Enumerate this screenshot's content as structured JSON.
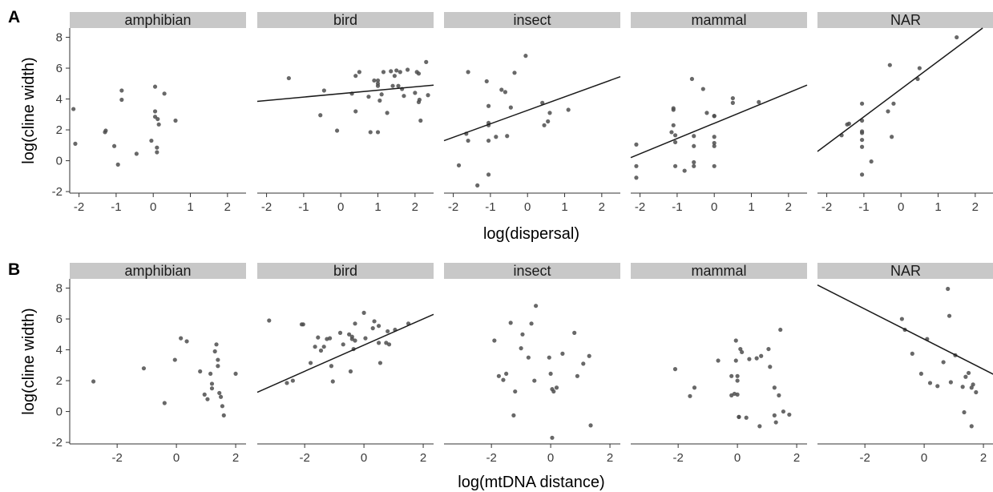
{
  "colors": {
    "strip": "#c8c8c8",
    "point": "#4d4d4d",
    "line": "#1a1a1a",
    "axis": "#333333"
  },
  "chart_data": [
    {
      "type": "scatter",
      "tag": "A",
      "xlabel": "log(dispersal)",
      "ylabel": "log(cline width)",
      "xlim": [
        -2.25,
        2.5
      ],
      "ylim": [
        -2.1,
        8.6
      ],
      "xticks": [
        -2,
        -1,
        0,
        1,
        2
      ],
      "yticks": [
        -2,
        0,
        2,
        4,
        6,
        8
      ],
      "grid": false,
      "facets": [
        {
          "name": "amphibian",
          "points": [
            [
              -2.15,
              3.35
            ],
            [
              -2.1,
              1.1
            ],
            [
              -1.3,
              1.85
            ],
            [
              -1.28,
              1.95
            ],
            [
              -1.05,
              0.95
            ],
            [
              -0.95,
              -0.25
            ],
            [
              -0.85,
              4.55
            ],
            [
              -0.85,
              3.95
            ],
            [
              -0.45,
              0.45
            ],
            [
              -0.05,
              1.3
            ],
            [
              0.05,
              4.8
            ],
            [
              0.05,
              3.2
            ],
            [
              0.05,
              2.85
            ],
            [
              0.1,
              0.85
            ],
            [
              0.1,
              0.55
            ],
            [
              0.12,
              2.7
            ],
            [
              0.15,
              2.35
            ],
            [
              0.3,
              4.35
            ],
            [
              0.6,
              2.6
            ]
          ]
        },
        {
          "name": "bird",
          "fit": [
            [
              -2.25,
              3.85
            ],
            [
              2.5,
              4.9
            ]
          ],
          "points": [
            [
              -1.4,
              5.35
            ],
            [
              -0.55,
              2.95
            ],
            [
              -0.45,
              4.55
            ],
            [
              -0.1,
              1.95
            ],
            [
              0.3,
              4.35
            ],
            [
              0.4,
              3.2
            ],
            [
              0.4,
              5.5
            ],
            [
              0.5,
              5.75
            ],
            [
              0.75,
              4.15
            ],
            [
              0.8,
              1.85
            ],
            [
              0.9,
              5.2
            ],
            [
              1.0,
              4.85
            ],
            [
              1.0,
              5.0
            ],
            [
              1.0,
              5.2
            ],
            [
              1.0,
              1.85
            ],
            [
              1.05,
              3.9
            ],
            [
              1.1,
              4.3
            ],
            [
              1.15,
              5.75
            ],
            [
              1.25,
              3.1
            ],
            [
              1.35,
              5.8
            ],
            [
              1.4,
              4.85
            ],
            [
              1.45,
              5.5
            ],
            [
              1.5,
              5.85
            ],
            [
              1.55,
              4.85
            ],
            [
              1.6,
              5.75
            ],
            [
              1.65,
              4.65
            ],
            [
              1.7,
              4.2
            ],
            [
              1.8,
              5.9
            ],
            [
              2.0,
              4.4
            ],
            [
              2.05,
              5.75
            ],
            [
              2.1,
              5.65
            ],
            [
              2.1,
              3.8
            ],
            [
              2.12,
              3.95
            ],
            [
              2.15,
              2.6
            ],
            [
              2.3,
              6.4
            ],
            [
              2.35,
              4.25
            ]
          ]
        },
        {
          "name": "insect",
          "fit": [
            [
              -2.25,
              1.3
            ],
            [
              2.5,
              5.45
            ]
          ],
          "points": [
            [
              -1.85,
              -0.3
            ],
            [
              -1.6,
              5.75
            ],
            [
              -1.65,
              1.75
            ],
            [
              -1.6,
              1.3
            ],
            [
              -1.35,
              -1.6
            ],
            [
              -1.1,
              5.15
            ],
            [
              -1.05,
              3.55
            ],
            [
              -1.05,
              2.45
            ],
            [
              -1.05,
              2.3
            ],
            [
              -1.05,
              1.3
            ],
            [
              -1.05,
              -0.9
            ],
            [
              -0.85,
              1.55
            ],
            [
              -0.7,
              4.6
            ],
            [
              -0.6,
              4.45
            ],
            [
              -0.55,
              1.6
            ],
            [
              -0.45,
              3.45
            ],
            [
              -0.35,
              5.7
            ],
            [
              -0.05,
              6.8
            ],
            [
              0.4,
              3.75
            ],
            [
              0.45,
              2.3
            ],
            [
              0.55,
              2.55
            ],
            [
              0.6,
              3.1
            ],
            [
              1.1,
              3.3
            ]
          ]
        },
        {
          "name": "mammal",
          "fit": [
            [
              -2.25,
              0.2
            ],
            [
              2.5,
              4.9
            ]
          ],
          "points": [
            [
              -2.1,
              1.05
            ],
            [
              -2.1,
              -0.35
            ],
            [
              -2.1,
              -1.1
            ],
            [
              -1.15,
              1.85
            ],
            [
              -1.1,
              3.4
            ],
            [
              -1.1,
              3.3
            ],
            [
              -1.1,
              2.3
            ],
            [
              -1.05,
              1.65
            ],
            [
              -1.05,
              1.2
            ],
            [
              -1.05,
              -0.35
            ],
            [
              -0.8,
              -0.65
            ],
            [
              -0.6,
              5.3
            ],
            [
              -0.55,
              1.6
            ],
            [
              -0.55,
              0.95
            ],
            [
              -0.55,
              -0.1
            ],
            [
              -0.55,
              -0.35
            ],
            [
              -0.3,
              4.65
            ],
            [
              -0.2,
              3.1
            ],
            [
              0.0,
              2.9
            ],
            [
              0.0,
              2.9
            ],
            [
              0.0,
              1.55
            ],
            [
              0.0,
              1.15
            ],
            [
              0.0,
              0.95
            ],
            [
              0.0,
              -0.35
            ],
            [
              0.5,
              4.05
            ],
            [
              0.5,
              3.75
            ],
            [
              1.2,
              3.8
            ]
          ]
        },
        {
          "name": "NAR",
          "fit": [
            [
              -2.25,
              0.6
            ],
            [
              2.2,
              8.6
            ]
          ],
          "points": [
            [
              -1.6,
              1.65
            ],
            [
              -1.45,
              2.35
            ],
            [
              -1.4,
              2.4
            ],
            [
              -1.05,
              3.7
            ],
            [
              -1.05,
              2.6
            ],
            [
              -1.05,
              1.9
            ],
            [
              -1.05,
              1.8
            ],
            [
              -1.05,
              1.35
            ],
            [
              -1.05,
              0.9
            ],
            [
              -1.05,
              -0.9
            ],
            [
              -0.8,
              -0.05
            ],
            [
              -0.35,
              3.2
            ],
            [
              -0.3,
              6.2
            ],
            [
              -0.2,
              3.7
            ],
            [
              -0.25,
              1.55
            ],
            [
              0.45,
              5.3
            ],
            [
              0.5,
              6.0
            ],
            [
              1.5,
              8.0
            ]
          ]
        }
      ]
    },
    {
      "type": "scatter",
      "tag": "B",
      "xlabel": "log(mtDNA distance)",
      "ylabel": "log(cline width)",
      "xlim": [
        -3.6,
        2.35
      ],
      "ylim": [
        -2.1,
        8.6
      ],
      "xticks": [
        -2,
        0,
        2
      ],
      "yticks": [
        -2,
        0,
        2,
        4,
        6,
        8
      ],
      "grid": false,
      "facets": [
        {
          "name": "amphibian",
          "points": [
            [
              -2.8,
              1.95
            ],
            [
              -1.1,
              2.8
            ],
            [
              -0.4,
              0.55
            ],
            [
              -0.05,
              3.35
            ],
            [
              0.15,
              4.75
            ],
            [
              0.35,
              4.55
            ],
            [
              0.8,
              2.6
            ],
            [
              0.95,
              1.1
            ],
            [
              1.05,
              0.8
            ],
            [
              1.15,
              2.45
            ],
            [
              1.2,
              1.8
            ],
            [
              1.2,
              1.5
            ],
            [
              1.3,
              3.9
            ],
            [
              1.35,
              4.35
            ],
            [
              1.4,
              3.35
            ],
            [
              1.4,
              2.95
            ],
            [
              1.45,
              1.2
            ],
            [
              1.5,
              0.95
            ],
            [
              1.55,
              0.35
            ],
            [
              1.6,
              -0.25
            ],
            [
              2.0,
              2.45
            ]
          ]
        },
        {
          "name": "bird",
          "fit": [
            [
              -3.6,
              1.25
            ],
            [
              2.35,
              6.3
            ]
          ],
          "points": [
            [
              -3.2,
              5.9
            ],
            [
              -2.6,
              1.85
            ],
            [
              -2.4,
              2.0
            ],
            [
              -2.1,
              5.65
            ],
            [
              -2.05,
              5.65
            ],
            [
              -1.8,
              3.15
            ],
            [
              -1.65,
              4.2
            ],
            [
              -1.55,
              4.8
            ],
            [
              -1.45,
              3.95
            ],
            [
              -1.35,
              4.2
            ],
            [
              -1.25,
              4.7
            ],
            [
              -1.15,
              4.75
            ],
            [
              -1.1,
              2.95
            ],
            [
              -1.05,
              1.95
            ],
            [
              -0.8,
              5.1
            ],
            [
              -0.7,
              4.35
            ],
            [
              -0.5,
              5.0
            ],
            [
              -0.45,
              2.6
            ],
            [
              -0.4,
              4.85
            ],
            [
              -0.4,
              4.7
            ],
            [
              -0.35,
              4.05
            ],
            [
              -0.3,
              5.7
            ],
            [
              -0.3,
              4.6
            ],
            [
              0.0,
              6.4
            ],
            [
              0.05,
              4.75
            ],
            [
              0.3,
              5.4
            ],
            [
              0.35,
              5.85
            ],
            [
              0.5,
              5.55
            ],
            [
              0.5,
              4.45
            ],
            [
              0.55,
              3.15
            ],
            [
              0.75,
              4.45
            ],
            [
              0.8,
              5.2
            ],
            [
              0.85,
              4.35
            ],
            [
              1.05,
              5.3
            ],
            [
              1.5,
              5.7
            ]
          ]
        },
        {
          "name": "insect",
          "points": [
            [
              -1.9,
              4.6
            ],
            [
              -1.75,
              2.3
            ],
            [
              -1.6,
              2.05
            ],
            [
              -1.5,
              2.45
            ],
            [
              -1.35,
              5.75
            ],
            [
              -1.25,
              -0.25
            ],
            [
              -1.2,
              1.3
            ],
            [
              -1.0,
              4.1
            ],
            [
              -0.95,
              5.0
            ],
            [
              -0.75,
              3.5
            ],
            [
              -0.65,
              5.7
            ],
            [
              -0.55,
              2.0
            ],
            [
              -0.5,
              6.85
            ],
            [
              -0.05,
              3.5
            ],
            [
              0.0,
              2.45
            ],
            [
              0.05,
              1.45
            ],
            [
              0.05,
              -1.7
            ],
            [
              0.1,
              1.3
            ],
            [
              0.2,
              1.55
            ],
            [
              0.4,
              3.75
            ],
            [
              0.8,
              5.1
            ],
            [
              0.9,
              2.3
            ],
            [
              1.1,
              3.1
            ],
            [
              1.3,
              3.6
            ],
            [
              1.35,
              -0.9
            ]
          ]
        },
        {
          "name": "mammal",
          "points": [
            [
              -2.1,
              2.75
            ],
            [
              -1.6,
              1.0
            ],
            [
              -1.45,
              1.55
            ],
            [
              -0.65,
              3.3
            ],
            [
              -0.2,
              1.05
            ],
            [
              -0.2,
              2.3
            ],
            [
              -0.1,
              1.15
            ],
            [
              -0.05,
              4.6
            ],
            [
              -0.05,
              3.3
            ],
            [
              0.0,
              2.0
            ],
            [
              0.0,
              2.3
            ],
            [
              0.0,
              1.1
            ],
            [
              0.05,
              -0.35
            ],
            [
              0.05,
              -0.35
            ],
            [
              0.1,
              4.05
            ],
            [
              0.15,
              3.85
            ],
            [
              0.3,
              -0.4
            ],
            [
              0.4,
              3.4
            ],
            [
              0.65,
              3.45
            ],
            [
              0.75,
              -0.95
            ],
            [
              0.8,
              3.6
            ],
            [
              1.05,
              4.05
            ],
            [
              1.1,
              2.9
            ],
            [
              1.25,
              1.55
            ],
            [
              1.25,
              -0.25
            ],
            [
              1.3,
              -0.7
            ],
            [
              1.4,
              1.05
            ],
            [
              1.45,
              5.3
            ],
            [
              1.55,
              0.0
            ],
            [
              1.75,
              -0.2
            ]
          ]
        },
        {
          "name": "NAR",
          "fit": [
            [
              -3.6,
              8.2
            ],
            [
              2.35,
              2.4
            ]
          ],
          "points": [
            [
              -0.75,
              6.0
            ],
            [
              -0.65,
              5.3
            ],
            [
              -0.4,
              3.75
            ],
            [
              -0.1,
              2.45
            ],
            [
              0.1,
              4.7
            ],
            [
              0.2,
              1.85
            ],
            [
              0.45,
              1.65
            ],
            [
              0.65,
              3.2
            ],
            [
              0.8,
              7.95
            ],
            [
              0.85,
              6.2
            ],
            [
              0.9,
              1.9
            ],
            [
              1.05,
              3.65
            ],
            [
              1.3,
              1.6
            ],
            [
              1.35,
              -0.05
            ],
            [
              1.4,
              2.25
            ],
            [
              1.5,
              2.5
            ],
            [
              1.6,
              -0.95
            ],
            [
              1.6,
              1.55
            ],
            [
              1.65,
              1.75
            ],
            [
              1.75,
              1.25
            ]
          ]
        }
      ]
    }
  ]
}
